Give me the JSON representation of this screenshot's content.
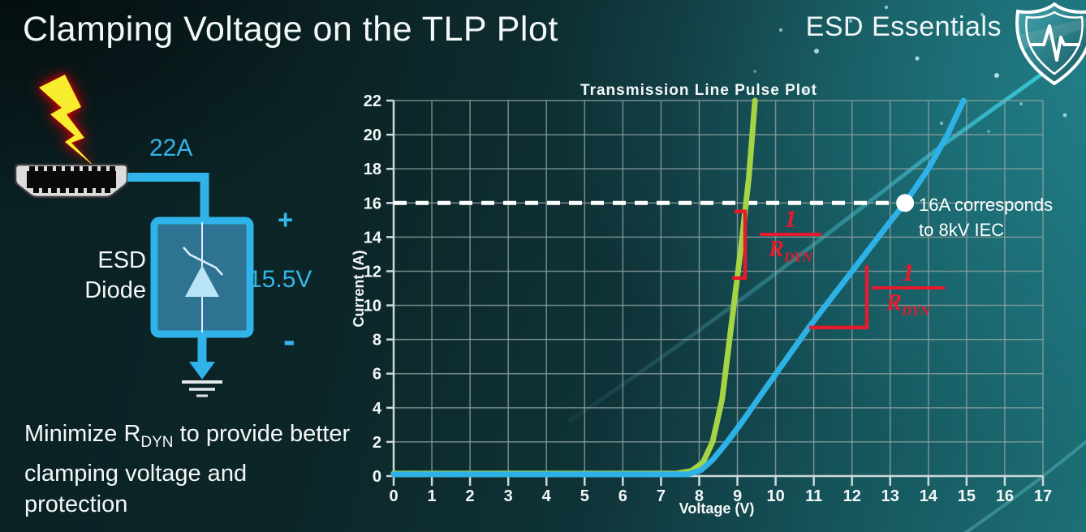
{
  "slide": {
    "title": "Clamping Voltage on the TLP Plot",
    "brand": "ESD Essentials",
    "note": {
      "pre": "Minimize R",
      "sub": "DYN",
      "post": " to provide better clamping voltage and protection"
    }
  },
  "diagram": {
    "surge_current": "22A",
    "device_line1": "ESD",
    "device_line2": "Diode",
    "plus": "+",
    "clamp_voltage": "15.5V",
    "minus": "-",
    "accent_blue": "#2fb3e8"
  },
  "chart_data": {
    "type": "line",
    "title": "Transmission Line Pulse Plot",
    "xlabel": "Voltage (V)",
    "ylabel": "Current (A)",
    "xlim": [
      0,
      17
    ],
    "ylim": [
      0,
      22
    ],
    "x_tick_step": 1,
    "y_tick_step": 2,
    "grid": true,
    "grid_color": "#8ea1a1",
    "axis_color": "#cfd9d9",
    "accent_red": "#e51a2c",
    "series": [
      {
        "name": "low-rdyn-diode-green",
        "color": "#a5d545",
        "points": [
          [
            0,
            0.15
          ],
          [
            7.4,
            0.15
          ],
          [
            7.8,
            0.3
          ],
          [
            8.1,
            0.8
          ],
          [
            8.35,
            2.0
          ],
          [
            8.6,
            4.5
          ],
          [
            8.85,
            9.0
          ],
          [
            9.1,
            13.5
          ],
          [
            9.3,
            17.5
          ],
          [
            9.46,
            22
          ]
        ]
      },
      {
        "name": "high-rdyn-diode-blue",
        "color": "#2eb1e6",
        "points": [
          [
            0,
            0.1
          ],
          [
            7.7,
            0.1
          ],
          [
            8.05,
            0.35
          ],
          [
            8.35,
            0.95
          ],
          [
            8.7,
            1.9
          ],
          [
            9.1,
            3.1
          ],
          [
            9.6,
            4.7
          ],
          [
            10.2,
            6.6
          ],
          [
            10.88,
            8.74
          ],
          [
            12,
            12.0
          ],
          [
            13,
            14.9
          ],
          [
            13.39,
            16
          ],
          [
            14,
            18.0
          ],
          [
            14.5,
            20.0
          ],
          [
            14.92,
            22
          ]
        ]
      }
    ],
    "threshold": {
      "y": 16,
      "x_start": 0,
      "x_end": 13.39,
      "marker": {
        "x": 13.39,
        "y": 16
      },
      "label_line1": "16A corresponds",
      "label_line2": "to 8kV IEC"
    },
    "slope_marks": [
      {
        "kind": "bracket",
        "x": 9.2,
        "y1": 11.6,
        "y2": 15.5
      },
      {
        "kind": "angle",
        "x1": 10.88,
        "x2": 12.39,
        "y": 8.7,
        "y_top": 12.35
      }
    ],
    "slope_labels": [
      {
        "numerator": "1",
        "denominator_base": "R",
        "denominator_sub": "DYN"
      },
      {
        "numerator": "1",
        "denominator_base": "R",
        "denominator_sub": "DYN"
      }
    ]
  }
}
